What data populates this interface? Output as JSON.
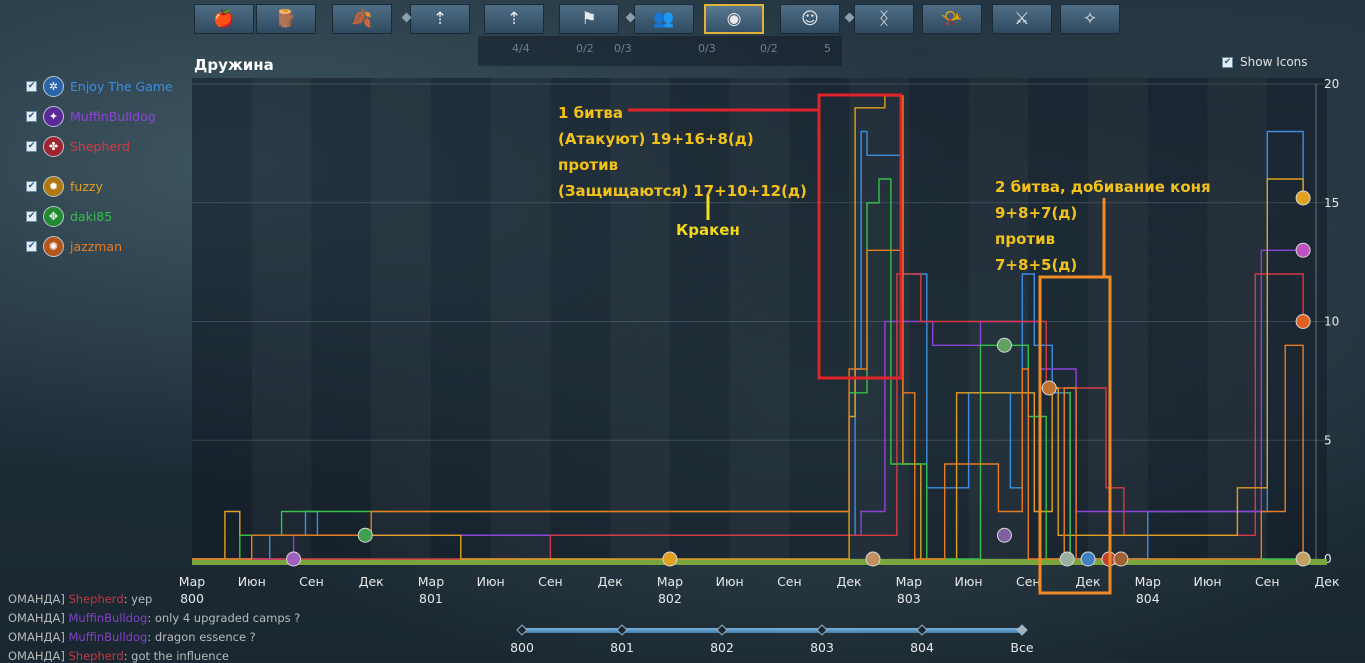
{
  "toolbar": {
    "buttons": [
      {
        "icon": "🍎",
        "name": "food-tab"
      },
      {
        "icon": "🪵",
        "name": "wood-tab"
      },
      {
        "icon": "🍂",
        "name": "resource-tab"
      },
      {
        "icon": "⇡",
        "name": "upgrade-tab"
      },
      {
        "icon": "⇡",
        "name": "upgrade-units-tab"
      },
      {
        "icon": "⚑",
        "name": "camps-tab"
      },
      {
        "icon": "👥",
        "name": "population-tab"
      },
      {
        "icon": "◉",
        "name": "warband-tab"
      },
      {
        "icon": "☺",
        "name": "happiness-tab"
      },
      {
        "icon": "ᛝ",
        "name": "rune-tab"
      },
      {
        "icon": "📯",
        "name": "horn-tab"
      },
      {
        "icon": "⚔",
        "name": "battle-tab"
      },
      {
        "icon": "✧",
        "name": "extra-tab"
      }
    ],
    "subbar": [
      "4/4",
      "0/2",
      "0/3",
      "0/3",
      "0/2",
      "5"
    ]
  },
  "title": "Дружина",
  "show_icons_label": "Show Icons",
  "legend": [
    {
      "name": "Enjoy The Game",
      "color": "#3d8ee3",
      "avatar_bg": "#2a64a8",
      "icon": "✲"
    },
    {
      "name": "MuffinBulldog",
      "color": "#8c44d8",
      "avatar_bg": "#5b2a9a",
      "icon": "✦"
    },
    {
      "name": "Shepherd",
      "color": "#d63a44",
      "avatar_bg": "#a02430",
      "icon": "✤"
    },
    {
      "name": "fuzzy",
      "color": "#e0a020",
      "avatar_bg": "#b07810",
      "icon": "✹"
    },
    {
      "name": "daki85",
      "color": "#37c04a",
      "avatar_bg": "#218a30",
      "icon": "✥"
    },
    {
      "name": "jazzman",
      "color": "#e87a22",
      "avatar_bg": "#b4561a",
      "icon": "✺"
    }
  ],
  "chart_data": {
    "type": "line",
    "y_ticks": [
      "0",
      "5",
      "10",
      "15",
      "20"
    ],
    "ylim": [
      0,
      20
    ],
    "x_months": [
      "Мар",
      "Июн",
      "Сен",
      "Дек",
      "Мар",
      "Июн",
      "Сен",
      "Дек",
      "Мар",
      "Июн",
      "Сен",
      "Дек",
      "Мар",
      "Июн",
      "Сен",
      "Дек",
      "Мар",
      "Июн",
      "Сен",
      "Дек"
    ],
    "x_years": [
      {
        "label": "800",
        "pos": 0
      },
      {
        "label": "801",
        "pos": 4
      },
      {
        "label": "802",
        "pos": 8
      },
      {
        "label": "803",
        "pos": 12
      },
      {
        "label": "804",
        "pos": 16
      }
    ],
    "series": [
      {
        "color": "#3d8ee3",
        "points": [
          [
            0,
            0
          ],
          [
            1.3,
            0
          ],
          [
            1.3,
            1
          ],
          [
            1.9,
            1
          ],
          [
            1.9,
            2
          ],
          [
            2.1,
            2
          ],
          [
            2.1,
            1
          ],
          [
            11.1,
            1
          ],
          [
            11.1,
            8
          ],
          [
            11.2,
            8
          ],
          [
            11.2,
            18
          ],
          [
            11.3,
            18
          ],
          [
            11.3,
            17
          ],
          [
            11.9,
            17
          ],
          [
            11.9,
            12
          ],
          [
            12.3,
            12
          ],
          [
            12.3,
            3
          ],
          [
            13.0,
            3
          ],
          [
            13.0,
            7
          ],
          [
            13.7,
            7
          ],
          [
            13.7,
            3
          ],
          [
            13.9,
            3
          ],
          [
            13.9,
            12
          ],
          [
            14.1,
            12
          ],
          [
            14.1,
            9
          ],
          [
            14.4,
            9
          ],
          [
            14.4,
            7
          ],
          [
            14.7,
            7
          ],
          [
            14.7,
            0
          ],
          [
            16.0,
            0
          ],
          [
            16.0,
            2
          ],
          [
            18.0,
            2
          ],
          [
            18.0,
            18
          ],
          [
            18.6,
            18
          ],
          [
            18.6,
            15.2
          ]
        ]
      },
      {
        "color": "#8c44d8",
        "points": [
          [
            0,
            0
          ],
          [
            1.7,
            0
          ],
          [
            1.7,
            1
          ],
          [
            11.2,
            1
          ],
          [
            11.2,
            2
          ],
          [
            11.6,
            2
          ],
          [
            11.6,
            10
          ],
          [
            12.4,
            10
          ],
          [
            12.4,
            9
          ],
          [
            13.2,
            9
          ],
          [
            13.2,
            10
          ],
          [
            14.2,
            10
          ],
          [
            14.2,
            8
          ],
          [
            14.8,
            8
          ],
          [
            14.8,
            2
          ],
          [
            17.9,
            2
          ],
          [
            17.9,
            13
          ],
          [
            18.6,
            13
          ]
        ]
      },
      {
        "color": "#d63a44",
        "points": [
          [
            0,
            0
          ],
          [
            6.0,
            0
          ],
          [
            6.0,
            1
          ],
          [
            11.8,
            1
          ],
          [
            11.8,
            12
          ],
          [
            12.2,
            12
          ],
          [
            12.2,
            10
          ],
          [
            14.3,
            10
          ],
          [
            14.3,
            7.2
          ],
          [
            15.3,
            7.2
          ],
          [
            15.3,
            3
          ],
          [
            15.6,
            3
          ],
          [
            15.6,
            1
          ],
          [
            17.8,
            1
          ],
          [
            17.8,
            12
          ],
          [
            18.6,
            12
          ],
          [
            18.6,
            10
          ]
        ]
      },
      {
        "color": "#e0a020",
        "points": [
          [
            0,
            0
          ],
          [
            0.55,
            0
          ],
          [
            0.55,
            2
          ],
          [
            0.8,
            2
          ],
          [
            0.8,
            1
          ],
          [
            4.5,
            1
          ],
          [
            4.5,
            0
          ],
          [
            11.0,
            0
          ],
          [
            11.0,
            6
          ],
          [
            11.1,
            6
          ],
          [
            11.1,
            19
          ],
          [
            11.6,
            19
          ],
          [
            11.6,
            19.5
          ],
          [
            11.9,
            19.5
          ],
          [
            11.9,
            4
          ],
          [
            12.2,
            4
          ],
          [
            12.2,
            0
          ],
          [
            12.8,
            0
          ],
          [
            12.8,
            7
          ],
          [
            14.1,
            7
          ],
          [
            14.1,
            2
          ],
          [
            14.4,
            2
          ],
          [
            14.4,
            7.2
          ],
          [
            14.5,
            7.2
          ],
          [
            14.5,
            1
          ],
          [
            17.5,
            1
          ],
          [
            17.5,
            3
          ],
          [
            18.0,
            3
          ],
          [
            18.0,
            16
          ],
          [
            18.6,
            16
          ],
          [
            18.6,
            15
          ]
        ]
      },
      {
        "color": "#37c04a",
        "points": [
          [
            0,
            0
          ],
          [
            0.8,
            0
          ],
          [
            0.8,
            1
          ],
          [
            1.5,
            1
          ],
          [
            1.5,
            2
          ],
          [
            11.0,
            2
          ],
          [
            11.0,
            7
          ],
          [
            11.3,
            7
          ],
          [
            11.3,
            15
          ],
          [
            11.5,
            15
          ],
          [
            11.5,
            16
          ],
          [
            11.7,
            16
          ],
          [
            11.7,
            4
          ],
          [
            12.3,
            4
          ],
          [
            12.3,
            0
          ],
          [
            13.2,
            0
          ],
          [
            13.2,
            9
          ],
          [
            14.0,
            9
          ],
          [
            14.0,
            6
          ],
          [
            14.3,
            6
          ],
          [
            14.3,
            0
          ],
          [
            14.6,
            0
          ],
          [
            14.6,
            7
          ],
          [
            14.7,
            7
          ],
          [
            14.7,
            0
          ],
          [
            18.6,
            0
          ]
        ]
      },
      {
        "color": "#e87a22",
        "points": [
          [
            0,
            0
          ],
          [
            1.0,
            0
          ],
          [
            1.0,
            1
          ],
          [
            3.0,
            1
          ],
          [
            3.0,
            2
          ],
          [
            11.0,
            2
          ],
          [
            11.0,
            8
          ],
          [
            11.3,
            8
          ],
          [
            11.3,
            13
          ],
          [
            11.9,
            13
          ],
          [
            11.9,
            7
          ],
          [
            12.1,
            7
          ],
          [
            12.1,
            0
          ],
          [
            12.6,
            0
          ],
          [
            12.6,
            4
          ],
          [
            13.5,
            4
          ],
          [
            13.5,
            2
          ],
          [
            13.9,
            2
          ],
          [
            13.9,
            8
          ],
          [
            14.0,
            8
          ],
          [
            14.0,
            0
          ],
          [
            14.6,
            0
          ],
          [
            14.6,
            7.2
          ],
          [
            14.8,
            7.2
          ],
          [
            14.8,
            0
          ],
          [
            17.9,
            0
          ],
          [
            17.9,
            2
          ],
          [
            18.3,
            2
          ],
          [
            18.3,
            9
          ],
          [
            18.6,
            9
          ],
          [
            18.6,
            0
          ]
        ]
      }
    ]
  },
  "annotations": {
    "battle1": [
      "1 битва",
      "(Атакуют) 19+16+8(д)",
      "против",
      "(Защищаются) 17+10+12(д)"
    ],
    "kraken": "Кракен",
    "battle2": [
      "2 битва, добивание коня",
      "9+8+7(д)",
      "против",
      "7+8+5(д)"
    ]
  },
  "chat": [
    {
      "prefix": "ОМАНДА]",
      "name": "Shepherd",
      "name_color": "#d63a44",
      "text": ": yep"
    },
    {
      "prefix": "ОМАНДА]",
      "name": "MuffinBulldog",
      "name_color": "#8c44d8",
      "text": ": only 4 upgraded camps ?"
    },
    {
      "prefix": "ОМАНДА]",
      "name": "MuffinBulldog",
      "name_color": "#8c44d8",
      "text": ": dragon essence ?"
    },
    {
      "prefix": "ОМАНДА]",
      "name": "Shepherd",
      "name_color": "#d63a44",
      "text": ": got the influence"
    }
  ],
  "timeline": [
    "800",
    "801",
    "802",
    "803",
    "804",
    "Все"
  ]
}
